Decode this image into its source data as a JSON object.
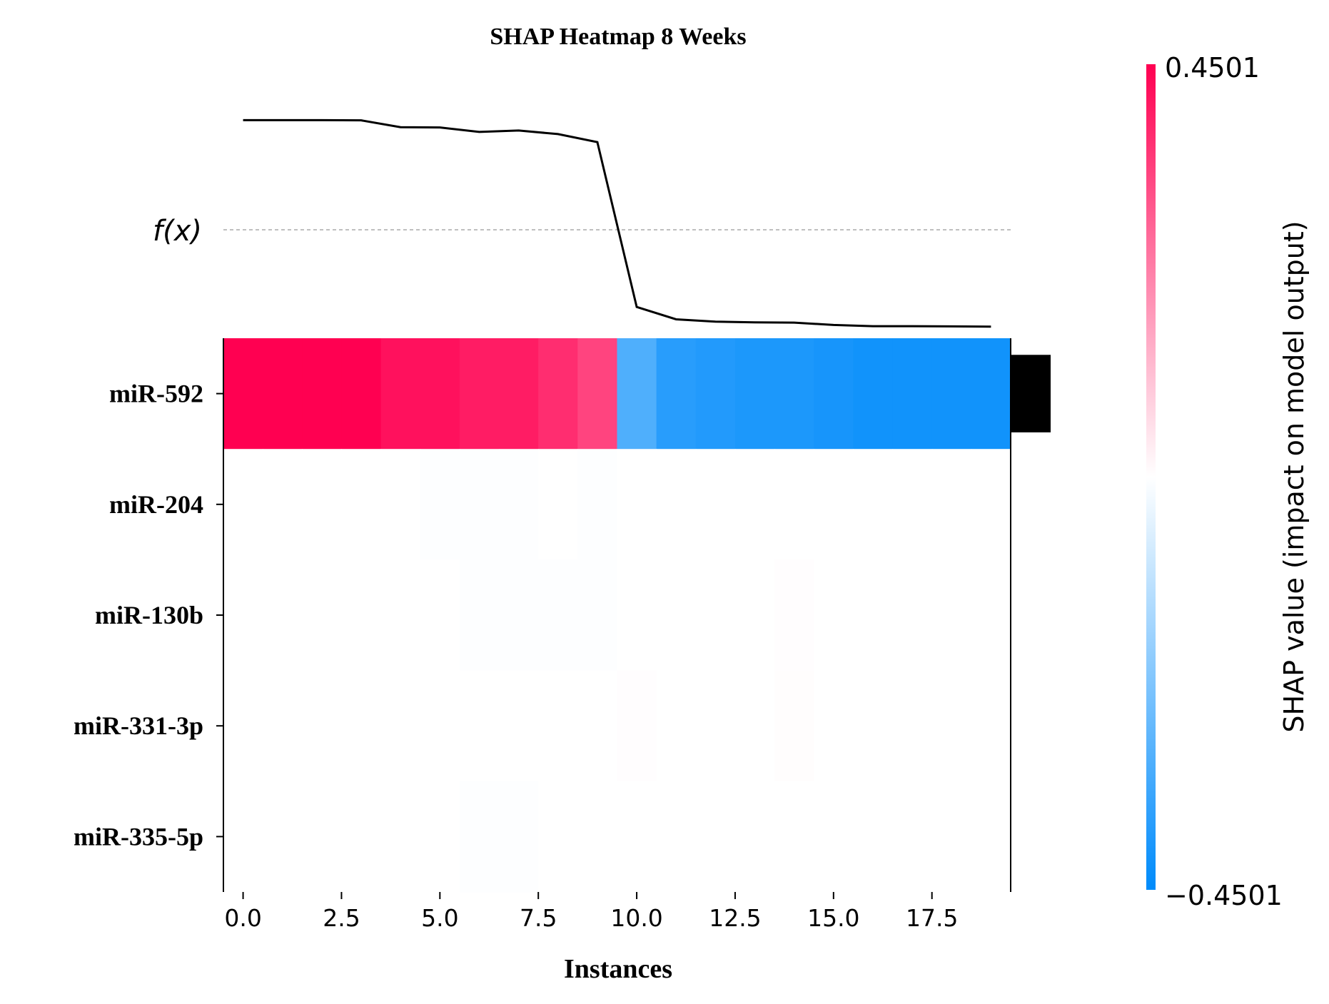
{
  "chart_data": {
    "type": "heatmap",
    "title": "SHAP Heatmap 8 Weeks",
    "xlabel": "Instances",
    "fx_label": "f(x)",
    "colorbar_label": "SHAP value (impact on model output)",
    "colorbar_max_label": "0.4501",
    "colorbar_min_label": "−0.4501",
    "vmin": -0.4501,
    "vmax": 0.4501,
    "xlim": [
      -0.5,
      19.5
    ],
    "x_ticks": [
      0,
      2.5,
      5,
      7.5,
      10,
      12.5,
      15,
      17.5
    ],
    "x_tick_labels": [
      "0.0",
      "2.5",
      "5.0",
      "7.5",
      "10.0",
      "12.5",
      "15.0",
      "17.5"
    ],
    "features": [
      "miR-592",
      "miR-204",
      "miR-130b",
      "miR-331-3p",
      "miR-335-5p"
    ],
    "instances": [
      0,
      1,
      2,
      3,
      4,
      5,
      6,
      7,
      8,
      9,
      10,
      11,
      12,
      13,
      14,
      15,
      16,
      17,
      18,
      19
    ],
    "shap_values": [
      [
        0.45,
        0.45,
        0.45,
        0.45,
        0.42,
        0.42,
        0.4,
        0.4,
        0.37,
        0.33,
        -0.31,
        -0.38,
        -0.39,
        -0.4,
        -0.4,
        -0.41,
        -0.42,
        -0.42,
        -0.42,
        -0.42
      ],
      [
        0.0,
        0.0,
        0.0,
        0.0,
        0.0,
        -0.004,
        -0.003,
        -0.003,
        0.0,
        -0.004,
        0.0,
        0.0,
        0.0,
        0.0,
        0.0,
        0.0,
        0.0,
        0.0,
        0.0,
        0.0
      ],
      [
        0.0,
        0.0,
        0.0,
        0.0,
        0.0,
        0.0,
        -0.004,
        -0.004,
        -0.003,
        -0.003,
        0.0,
        0.0,
        0.0,
        0.0,
        0.003,
        0.0,
        0.0,
        0.0,
        0.0,
        0.0
      ],
      [
        0.0,
        0.0,
        0.0,
        0.0,
        0.0,
        0.0,
        0.0,
        0.0,
        0.0,
        0.0,
        0.003,
        0.0,
        0.0,
        0.0,
        0.004,
        0.0,
        0.0,
        0.0,
        0.0,
        0.0
      ],
      [
        0.0,
        0.0,
        0.0,
        0.0,
        0.0,
        0.0,
        -0.003,
        -0.003,
        0.0,
        0.0,
        0.0,
        0.0,
        0.0,
        0.0,
        0.0,
        0.0,
        0.0,
        0.0,
        0.0,
        0.0
      ]
    ],
    "fx_values": [
      0.45,
      0.45,
      0.45,
      0.449,
      0.42,
      0.419,
      0.4,
      0.406,
      0.391,
      0.357,
      -0.34,
      -0.392,
      -0.402,
      -0.405,
      -0.406,
      -0.416,
      -0.421,
      -0.421,
      -0.422,
      -0.423
    ],
    "fx_range": [
      -0.46,
      0.46
    ],
    "feature_importance": [
      0.4,
      0.001,
      0.001,
      0.001,
      0.001
    ],
    "colors": {
      "positive": "#ff0051",
      "negative": "#008bfb",
      "neutral": "#ffffff",
      "line": "#000000",
      "bar": "#000000",
      "dashed": "#999999"
    }
  }
}
